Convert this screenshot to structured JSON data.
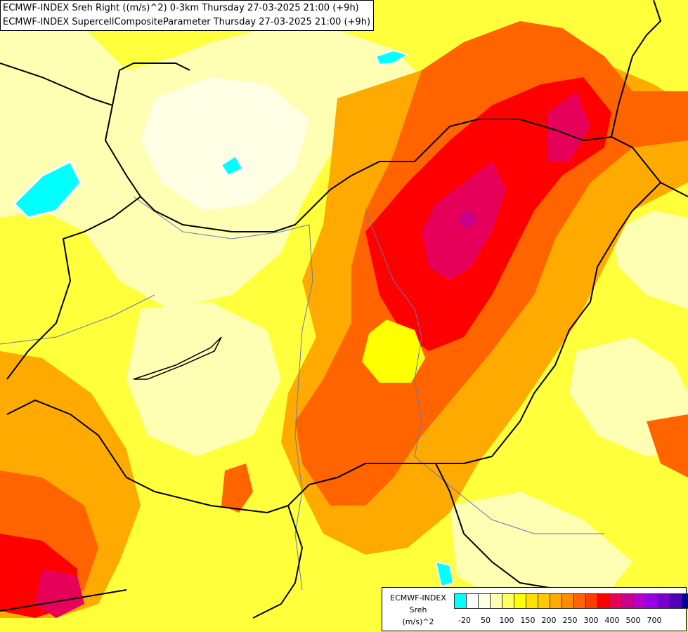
{
  "header": {
    "line1": "ECMWF-INDEX Sreh Right ((m/s)^2) 0-3km Thursday 27-03-2025 21:00 (+9h)",
    "line2": "ECMWF-INDEX SupercellCompositeParameter Thursday 27-03-2025 21:00 (+9h)"
  },
  "legend": {
    "title_line1": "ECMWF-INDEX",
    "title_line2": "Sreh",
    "title_line3": "(m/s)^2",
    "colors": [
      "#00ffff",
      "#ffffff",
      "#ffffe6",
      "#ffffb4",
      "#ffff64",
      "#ffff00",
      "#ffe100",
      "#ffc800",
      "#ffaa00",
      "#ff8c00",
      "#ff6400",
      "#ff3c00",
      "#ff0000",
      "#e6005a",
      "#c8008c",
      "#b400c8",
      "#9600e6",
      "#7800c8",
      "#5000b4",
      "#000096"
    ],
    "ticks": [
      "-20",
      "50",
      "100",
      "150",
      "200",
      "250",
      "300",
      "400",
      "500",
      "700"
    ],
    "tick_color_index": [
      0,
      2,
      4,
      6,
      8,
      10,
      12,
      14,
      16,
      18
    ]
  }
}
